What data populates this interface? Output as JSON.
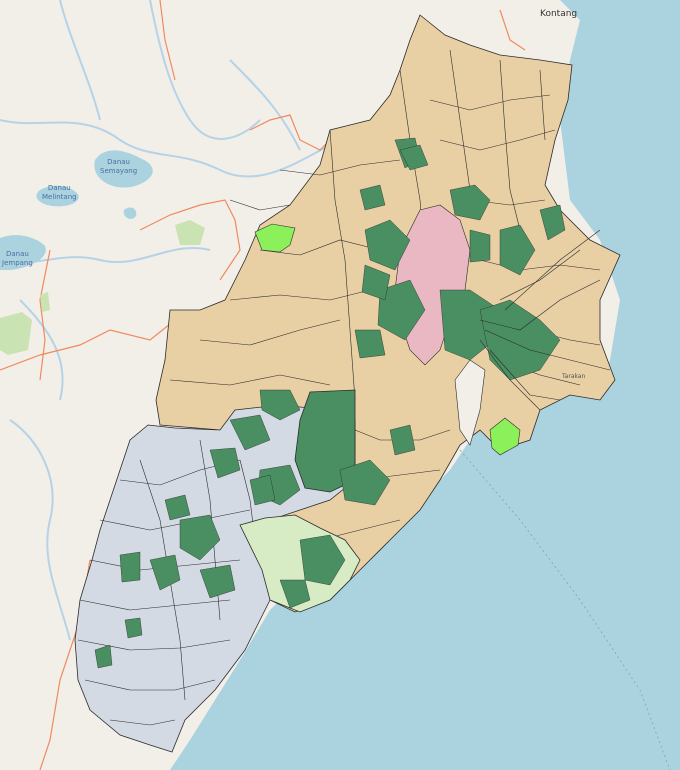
{
  "map": {
    "labels": {
      "city": "Kontang",
      "lake_1": "Danau\nSemayang",
      "lake_2": "Danau\nMelintang",
      "lake_3": "Danau\nJempang",
      "city_south": "Tarakan"
    },
    "colors": {
      "sea": "#aad3df",
      "land": "#f2efe9",
      "region_tan": "#e8cfa4",
      "region_blue": "#d3dae4",
      "forest_dark": "#4a8f62",
      "forest_light": "#d7ebc4",
      "urban_pink": "#e9b8c2",
      "bright_green": "#8cf05a",
      "boundary": "#2b2b2b",
      "admin_border": "#f08a5d",
      "river": "#b5d3e7"
    }
  }
}
